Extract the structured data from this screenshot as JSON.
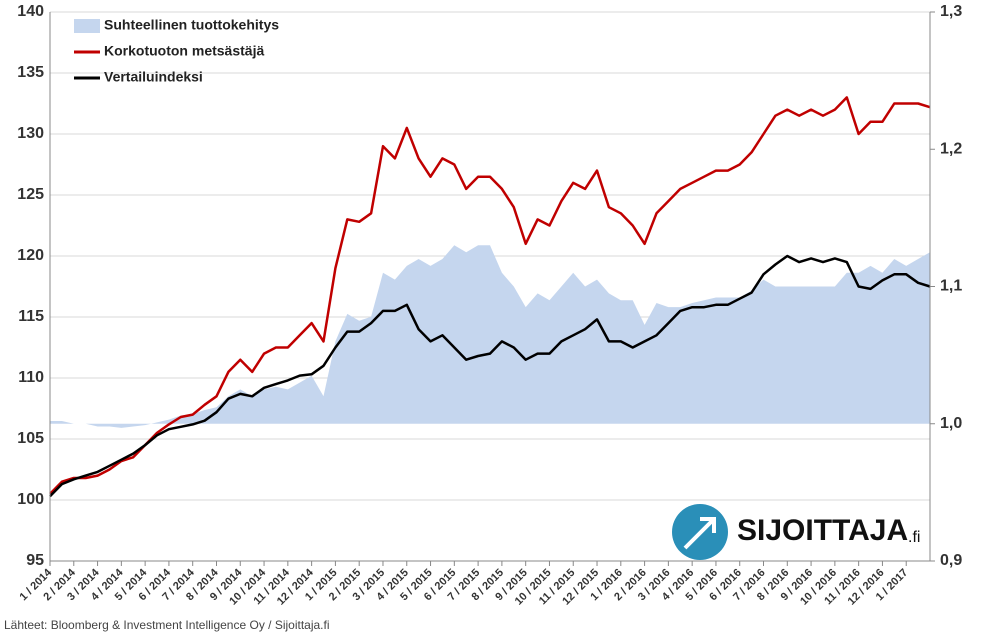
{
  "chart_data": {
    "type": "line",
    "categories": [
      "1 / 2014",
      null,
      "2 / 2014",
      null,
      "3 / 2014",
      null,
      "4 / 2014",
      null,
      "5 / 2014",
      null,
      "6 / 2014",
      null,
      "7 / 2014",
      null,
      "8 / 2014",
      null,
      "9 / 2014",
      null,
      "10 / 2014",
      null,
      "11 / 2014",
      null,
      "12 / 2014",
      null,
      "1 / 2015",
      null,
      "2 / 2015",
      null,
      "3 / 2015",
      null,
      "4 / 2015",
      null,
      "5 / 2015",
      null,
      "6 / 2015",
      null,
      "7 / 2015",
      null,
      "8 / 2015",
      null,
      "9 / 2015",
      null,
      "10 / 2015",
      null,
      "11 / 2015",
      null,
      "12 / 2015",
      null,
      "1 / 2016",
      null,
      "2 / 2016",
      null,
      "3 / 2016",
      null,
      "4 / 2016",
      null,
      "5 / 2016",
      null,
      "6 / 2016",
      null,
      "7 / 2016",
      null,
      "8 / 2016",
      null,
      "9 / 2016",
      null,
      "10 / 2016",
      null,
      "11 / 2016",
      null,
      "12 / 2016",
      null,
      "1 / 2017",
      null,
      null
    ],
    "series": [
      {
        "name": "Suhteellinen tuottokehitys",
        "type": "area",
        "axis": "y2",
        "color": "#c5d6ee",
        "values": [
          1.002,
          1.002,
          1.0,
          1.0,
          0.998,
          0.998,
          0.997,
          0.998,
          0.999,
          1.001,
          1.003,
          1.006,
          1.007,
          1.01,
          1.012,
          1.02,
          1.025,
          1.02,
          1.025,
          1.027,
          1.025,
          1.03,
          1.035,
          1.02,
          1.06,
          1.08,
          1.075,
          1.078,
          1.11,
          1.105,
          1.115,
          1.12,
          1.115,
          1.12,
          1.13,
          1.125,
          1.13,
          1.13,
          1.11,
          1.1,
          1.085,
          1.095,
          1.09,
          1.1,
          1.11,
          1.1,
          1.105,
          1.095,
          1.09,
          1.09,
          1.072,
          1.088,
          1.085,
          1.085,
          1.088,
          1.09,
          1.092,
          1.092,
          1.092,
          1.097,
          1.105,
          1.1,
          1.1,
          1.1,
          1.1,
          1.1,
          1.1,
          1.11,
          1.11,
          1.115,
          1.11,
          1.12,
          1.115,
          1.12,
          1.125
        ]
      },
      {
        "name": "Korkotuoton metsästäjä",
        "color": "#c00000",
        "values": [
          100.5,
          101.5,
          101.8,
          101.8,
          102,
          102.5,
          103.2,
          103.5,
          104.5,
          105.5,
          106.2,
          106.8,
          107,
          107.8,
          108.5,
          110.5,
          111.5,
          110.5,
          112,
          112.5,
          112.5,
          113.5,
          114.5,
          113,
          119,
          123,
          122.8,
          123.5,
          129,
          128,
          130.5,
          128,
          126.5,
          128,
          127.5,
          125.5,
          126.5,
          126.5,
          125.5,
          124,
          121,
          123,
          122.5,
          124.5,
          126,
          125.5,
          127,
          124,
          123.5,
          122.5,
          121,
          123.5,
          124.5,
          125.5,
          126,
          126.5,
          127,
          127,
          127.5,
          128.5,
          130,
          131.5,
          132,
          131.5,
          132,
          131.5,
          132,
          133,
          130,
          131,
          131,
          132.5,
          132.5,
          132.5,
          132.2
        ]
      },
      {
        "name": "Vertailuindeksi",
        "color": "#000000",
        "values": [
          100.3,
          101.3,
          101.7,
          102,
          102.3,
          102.8,
          103.3,
          103.8,
          104.5,
          105.3,
          105.8,
          106,
          106.2,
          106.5,
          107.2,
          108.3,
          108.7,
          108.5,
          109.2,
          109.5,
          109.8,
          110.2,
          110.3,
          111,
          112.5,
          113.8,
          113.8,
          114.5,
          115.5,
          115.5,
          116,
          114,
          113,
          113.5,
          112.5,
          111.5,
          111.8,
          112,
          113,
          112.5,
          111.5,
          112,
          112,
          113,
          113.5,
          114,
          114.8,
          113,
          113,
          112.5,
          113,
          113.5,
          114.5,
          115.5,
          115.8,
          115.8,
          116,
          116,
          116.5,
          117,
          118.5,
          119.3,
          120,
          119.5,
          119.8,
          119.5,
          119.8,
          119.5,
          117.5,
          117.3,
          118,
          118.5,
          118.5,
          117.8,
          117.5
        ]
      }
    ],
    "area_baseline": 1,
    "ylim": [
      95,
      140
    ],
    "yticks": [
      95,
      100,
      105,
      110,
      115,
      120,
      125,
      130,
      135,
      140
    ],
    "y2lim": [
      0.9,
      1.3
    ],
    "y2ticks": [
      {
        "value": 0.9,
        "label": "0,9"
      },
      {
        "value": 1.0,
        "label": "1,0"
      },
      {
        "value": 1.1,
        "label": "1,1"
      },
      {
        "value": 1.2,
        "label": "1,2"
      },
      {
        "value": 1.3,
        "label": "1,3"
      }
    ],
    "grid": true,
    "legend": "top-left",
    "source": "Lähteet: Bloomberg & Investment Intelligence Oy / Sijoittaja.fi",
    "logo": {
      "text": "SIJOITTAJA",
      "suffix": ".fi"
    }
  }
}
